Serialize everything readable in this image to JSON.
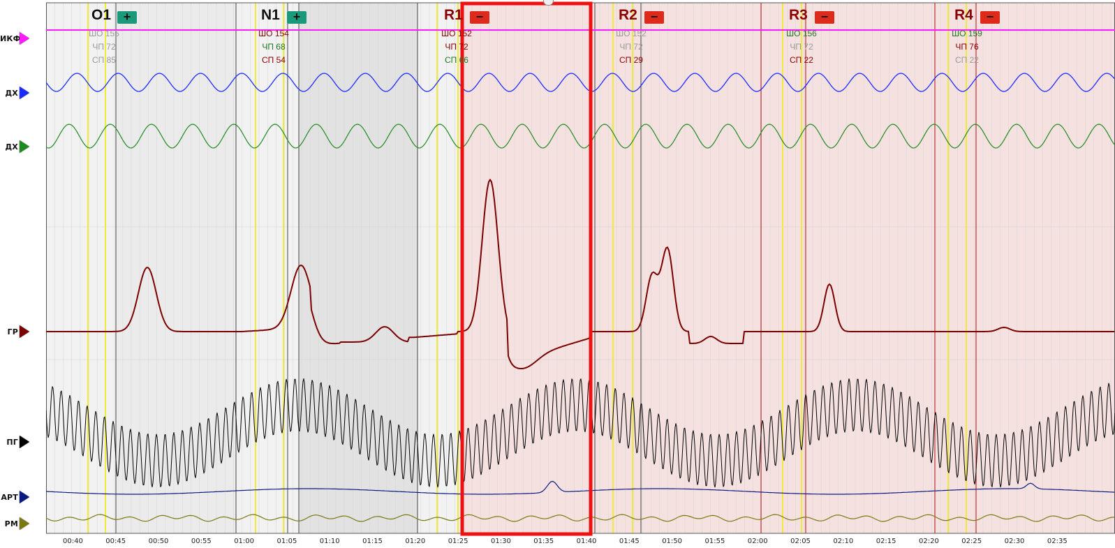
{
  "channels": [
    {
      "label": "ИКФ",
      "color": "#ff1aff"
    },
    {
      "label": "ДХ",
      "color": "#1a2bff"
    },
    {
      "label": "ДХ",
      "color": "#1f8a1f"
    },
    {
      "label": "ГР",
      "color": "#7a0000"
    },
    {
      "label": "ПГ",
      "color": "#000000"
    },
    {
      "label": "АРТ",
      "color": "#0a1a80"
    },
    {
      "label": "РМ",
      "color": "#7a7a10"
    }
  ],
  "questions": [
    {
      "id": "O1",
      "flag": "+",
      "flag_color": "#1a9a7a",
      "title_color": "#111111",
      "shoe": "ШО 155",
      "chp": "ЧП 72",
      "sp": "СП 85",
      "shoe_color": "#9a9a9a",
      "chp_color": "#9a9a9a",
      "sp_color": "#9a9a9a"
    },
    {
      "id": "N1",
      "flag": "+",
      "flag_color": "#1a9a7a",
      "title_color": "#111111",
      "shoe": "ШО 154",
      "chp": "ЧП 68",
      "sp": "СП 54",
      "shoe_color": "#8a0000",
      "chp_color": "#1f7a1f",
      "sp_color": "#8a0000"
    },
    {
      "id": "R1",
      "flag": "−",
      "flag_color": "#dd2a1a",
      "title_color": "#8a0000",
      "shoe": "ШО 152",
      "chp": "ЧП 72",
      "sp": "СП 66",
      "shoe_color": "#8a0000",
      "chp_color": "#8a0000",
      "sp_color": "#1f7a1f"
    },
    {
      "id": "R2",
      "flag": "−",
      "flag_color": "#dd2a1a",
      "title_color": "#8a0000",
      "shoe": "ШО 152",
      "chp": "ЧП 72",
      "sp": "СП 29",
      "shoe_color": "#9a9a9a",
      "chp_color": "#9a9a9a",
      "sp_color": "#8a0000"
    },
    {
      "id": "R3",
      "flag": "−",
      "flag_color": "#dd2a1a",
      "title_color": "#8a0000",
      "shoe": "ШО 156",
      "chp": "ЧП 72",
      "sp": "СП 22",
      "shoe_color": "#1f7a1f",
      "chp_color": "#9a9a9a",
      "sp_color": "#8a0000"
    },
    {
      "id": "R4",
      "flag": "−",
      "flag_color": "#dd2a1a",
      "title_color": "#8a0000",
      "shoe": "ШО 159",
      "chp": "ЧП 76",
      "sp": "СП 22",
      "shoe_color": "#1f7a1f",
      "chp_color": "#8a0000",
      "sp_color": "#9a9a9a"
    }
  ],
  "time_ticks": [
    "00:40",
    "00:45",
    "00:50",
    "00:55",
    "01:00",
    "01:05",
    "01:10",
    "01:15",
    "01:20",
    "01:25",
    "01:30",
    "01:35",
    "01:40",
    "01:45",
    "01:50",
    "01:55",
    "02:00",
    "02:05",
    "02:10",
    "02:15",
    "02:20",
    "02:25",
    "02:30",
    "02:35"
  ],
  "selection_color": "#ee1111"
}
